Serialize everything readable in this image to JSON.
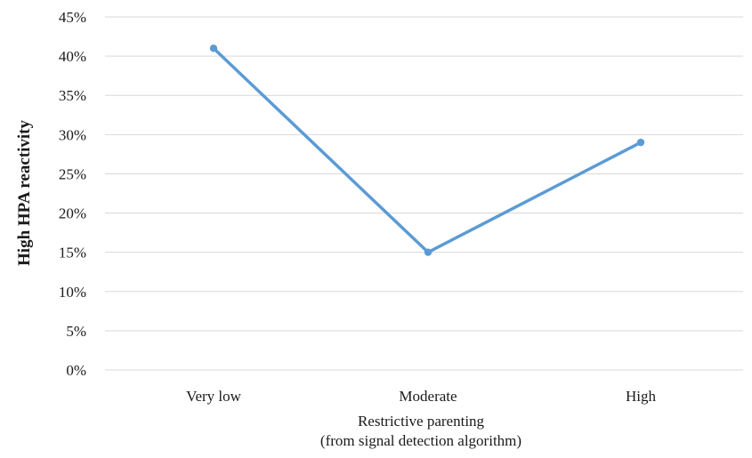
{
  "chart_data": {
    "type": "line",
    "title": "",
    "categories": [
      "Very low",
      "Moderate",
      "High"
    ],
    "series": [
      {
        "values": [
          0.41,
          0.15,
          0.29
        ]
      }
    ],
    "ylabel": "High HPA reactivity",
    "xlabel_lines": [
      "Restrictive parenting",
      "(from signal detection algorithm)"
    ],
    "ylim": [
      0,
      0.45
    ],
    "yticks": [
      "0%",
      "5%",
      "10%",
      "15%",
      "20%",
      "25%",
      "30%",
      "35%",
      "40%",
      "45%"
    ],
    "grid": true,
    "legend": "none",
    "line_color": "#5b9bd5"
  }
}
